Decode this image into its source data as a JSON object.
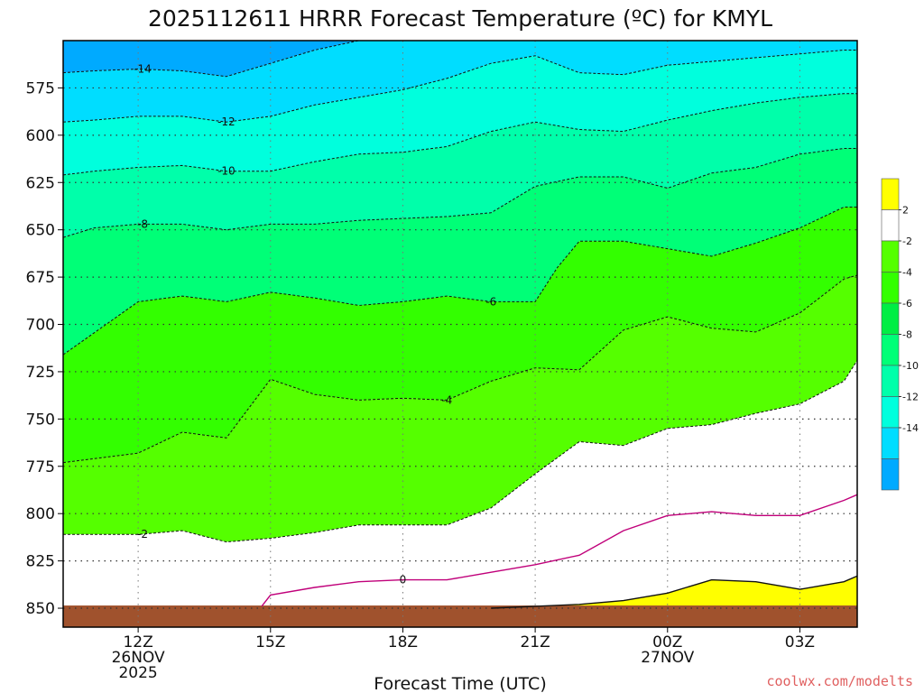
{
  "chart_data": {
    "type": "heatmap",
    "title": "2025112611 HRRR Forecast Temperature (ºC) for KMYL",
    "xlabel": "Forecast Time (UTC)",
    "ylabel": "",
    "credit": "coolwx.com/modelts",
    "x_unit": "hours since 2025-11-26 12Z",
    "xlim": [
      -1.7,
      16.3
    ],
    "ylim": [
      860,
      550
    ],
    "y_reversed": true,
    "x_ticks": [
      {
        "x": 0,
        "lines": [
          "12Z",
          "26NOV",
          "2025"
        ]
      },
      {
        "x": 3,
        "lines": [
          "15Z"
        ]
      },
      {
        "x": 6,
        "lines": [
          "18Z"
        ]
      },
      {
        "x": 9,
        "lines": [
          "21Z"
        ]
      },
      {
        "x": 12,
        "lines": [
          "00Z",
          "27NOV"
        ]
      },
      {
        "x": 15,
        "lines": [
          "03Z"
        ]
      }
    ],
    "y_ticks": [
      575,
      600,
      625,
      650,
      675,
      700,
      725,
      750,
      775,
      800,
      825,
      850
    ],
    "grid": true,
    "colorbar": {
      "levels": [
        -16,
        -14,
        -12,
        -10,
        -8,
        -6,
        -4,
        -2,
        2,
        4
      ],
      "tick_labels": [
        "-14",
        "-12",
        "-10",
        "-8",
        "-6",
        "-4",
        "-2",
        "2"
      ],
      "colors": [
        "#00aaff",
        "#00ddff",
        "#00ffdd",
        "#00ffaa",
        "#00ff77",
        "#00ee44",
        "#33ff00",
        "#55ff00",
        "#ffffff",
        "#ffff00"
      ],
      "placement": "right"
    },
    "ground": {
      "color": "#a0522d",
      "pressure": 850
    },
    "contours": [
      {
        "level": -14,
        "label": "-14",
        "color": "#111111",
        "dashed": true,
        "label_at": 0.1,
        "points": [
          [
            -1.7,
            567
          ],
          [
            -1,
            566
          ],
          [
            0,
            565
          ],
          [
            1,
            566
          ],
          [
            2,
            569
          ],
          [
            3,
            562
          ],
          [
            4,
            555
          ],
          [
            5,
            550
          ]
        ]
      },
      {
        "level": -12,
        "label": "-12",
        "color": "#111111",
        "dashed": true,
        "label_at": 2.0,
        "points": [
          [
            -1.7,
            593
          ],
          [
            -1,
            592
          ],
          [
            0,
            590
          ],
          [
            1,
            590
          ],
          [
            2,
            593
          ],
          [
            3,
            590
          ],
          [
            4,
            584
          ],
          [
            5,
            580
          ],
          [
            6,
            576
          ],
          [
            7,
            570
          ],
          [
            8,
            562
          ],
          [
            9,
            558
          ],
          [
            10,
            567
          ],
          [
            11,
            568
          ],
          [
            12,
            563
          ],
          [
            13,
            561
          ],
          [
            14,
            559
          ],
          [
            15,
            557
          ],
          [
            16,
            555
          ],
          [
            16.3,
            555
          ]
        ]
      },
      {
        "level": -10,
        "label": "-10",
        "color": "#111111",
        "dashed": true,
        "label_at": 2.0,
        "points": [
          [
            -1.7,
            621
          ],
          [
            -1,
            619
          ],
          [
            0,
            617
          ],
          [
            1,
            616
          ],
          [
            2,
            619
          ],
          [
            3,
            619
          ],
          [
            4,
            614
          ],
          [
            5,
            610
          ],
          [
            6,
            609
          ],
          [
            7,
            606
          ],
          [
            8,
            598
          ],
          [
            9,
            593
          ],
          [
            10,
            597
          ],
          [
            11,
            598
          ],
          [
            12,
            592
          ],
          [
            13,
            587
          ],
          [
            14,
            583
          ],
          [
            15,
            580
          ],
          [
            16,
            578
          ],
          [
            16.3,
            578
          ]
        ]
      },
      {
        "level": -8,
        "label": "-8",
        "color": "#111111",
        "dashed": true,
        "label_at": 0.1,
        "points": [
          [
            -1.7,
            654
          ],
          [
            -1,
            649
          ],
          [
            0,
            647
          ],
          [
            1,
            647
          ],
          [
            2,
            650
          ],
          [
            3,
            647
          ],
          [
            4,
            647
          ],
          [
            5,
            645
          ],
          [
            6,
            644
          ],
          [
            7,
            643
          ],
          [
            8,
            641
          ],
          [
            9,
            627
          ],
          [
            10,
            622
          ],
          [
            11,
            622
          ],
          [
            12,
            628
          ],
          [
            13,
            620
          ],
          [
            14,
            617
          ],
          [
            15,
            610
          ],
          [
            16,
            607
          ],
          [
            16.3,
            607
          ]
        ]
      },
      {
        "level": -6,
        "label": "-6",
        "color": "#111111",
        "dashed": true,
        "label_at": 8.0,
        "points": [
          [
            -1.7,
            716
          ],
          [
            0,
            688
          ],
          [
            1,
            685
          ],
          [
            2,
            688
          ],
          [
            3,
            683
          ],
          [
            4,
            686
          ],
          [
            5,
            690
          ],
          [
            6,
            688
          ],
          [
            7,
            685
          ],
          [
            8,
            688
          ],
          [
            9,
            688
          ],
          [
            9.5,
            670
          ],
          [
            10,
            656
          ],
          [
            11,
            656
          ],
          [
            12,
            660
          ],
          [
            13,
            664
          ],
          [
            14,
            657
          ],
          [
            15,
            649
          ],
          [
            16,
            638
          ],
          [
            16.3,
            638
          ]
        ]
      },
      {
        "level": -4,
        "label": "-4",
        "color": "#111111",
        "dashed": true,
        "label_at": 7.0,
        "points": [
          [
            -1.7,
            773
          ],
          [
            0,
            768
          ],
          [
            1,
            757
          ],
          [
            2,
            760
          ],
          [
            3,
            729
          ],
          [
            4,
            737
          ],
          [
            5,
            740
          ],
          [
            6,
            739
          ],
          [
            7,
            740
          ],
          [
            8,
            730
          ],
          [
            9,
            723
          ],
          [
            10,
            724
          ],
          [
            11,
            703
          ],
          [
            12,
            696
          ],
          [
            13,
            702
          ],
          [
            14,
            704
          ],
          [
            15,
            694
          ],
          [
            16,
            676
          ],
          [
            16.3,
            674
          ]
        ]
      },
      {
        "level": -2,
        "label": "-2",
        "color": "#111111",
        "dashed": true,
        "label_at": 0.1,
        "points": [
          [
            -1.7,
            811
          ],
          [
            0,
            811
          ],
          [
            1,
            809
          ],
          [
            2,
            815
          ],
          [
            3,
            813
          ],
          [
            4,
            810
          ],
          [
            5,
            806
          ],
          [
            6,
            806
          ],
          [
            7,
            806
          ],
          [
            8,
            797
          ],
          [
            9,
            779
          ],
          [
            10,
            762
          ],
          [
            11,
            764
          ],
          [
            12,
            755
          ],
          [
            13,
            753
          ],
          [
            14,
            747
          ],
          [
            15,
            742
          ],
          [
            16,
            730
          ],
          [
            16.3,
            719
          ]
        ]
      },
      {
        "level": 0,
        "label": "0",
        "color": "#c0007a",
        "dashed": false,
        "label_at": 6.0,
        "points": [
          [
            2.8,
            849
          ],
          [
            3,
            843
          ],
          [
            4,
            839
          ],
          [
            5,
            836
          ],
          [
            6,
            835
          ],
          [
            7,
            835
          ],
          [
            8,
            831
          ],
          [
            9,
            827
          ],
          [
            10,
            822
          ],
          [
            11,
            809
          ],
          [
            12,
            801
          ],
          [
            13,
            799
          ],
          [
            14,
            801
          ],
          [
            15,
            801
          ],
          [
            16,
            793
          ],
          [
            16.3,
            790
          ]
        ]
      },
      {
        "level": 2,
        "label": "",
        "color": "#111111",
        "dashed": false,
        "label_at": -1,
        "points": [
          [
            8,
            850
          ],
          [
            9,
            849
          ],
          [
            10,
            848
          ],
          [
            11,
            846
          ],
          [
            12,
            842
          ],
          [
            13,
            835
          ],
          [
            14,
            836
          ],
          [
            15,
            840
          ],
          [
            16,
            836
          ],
          [
            16.3,
            833
          ]
        ]
      }
    ]
  }
}
